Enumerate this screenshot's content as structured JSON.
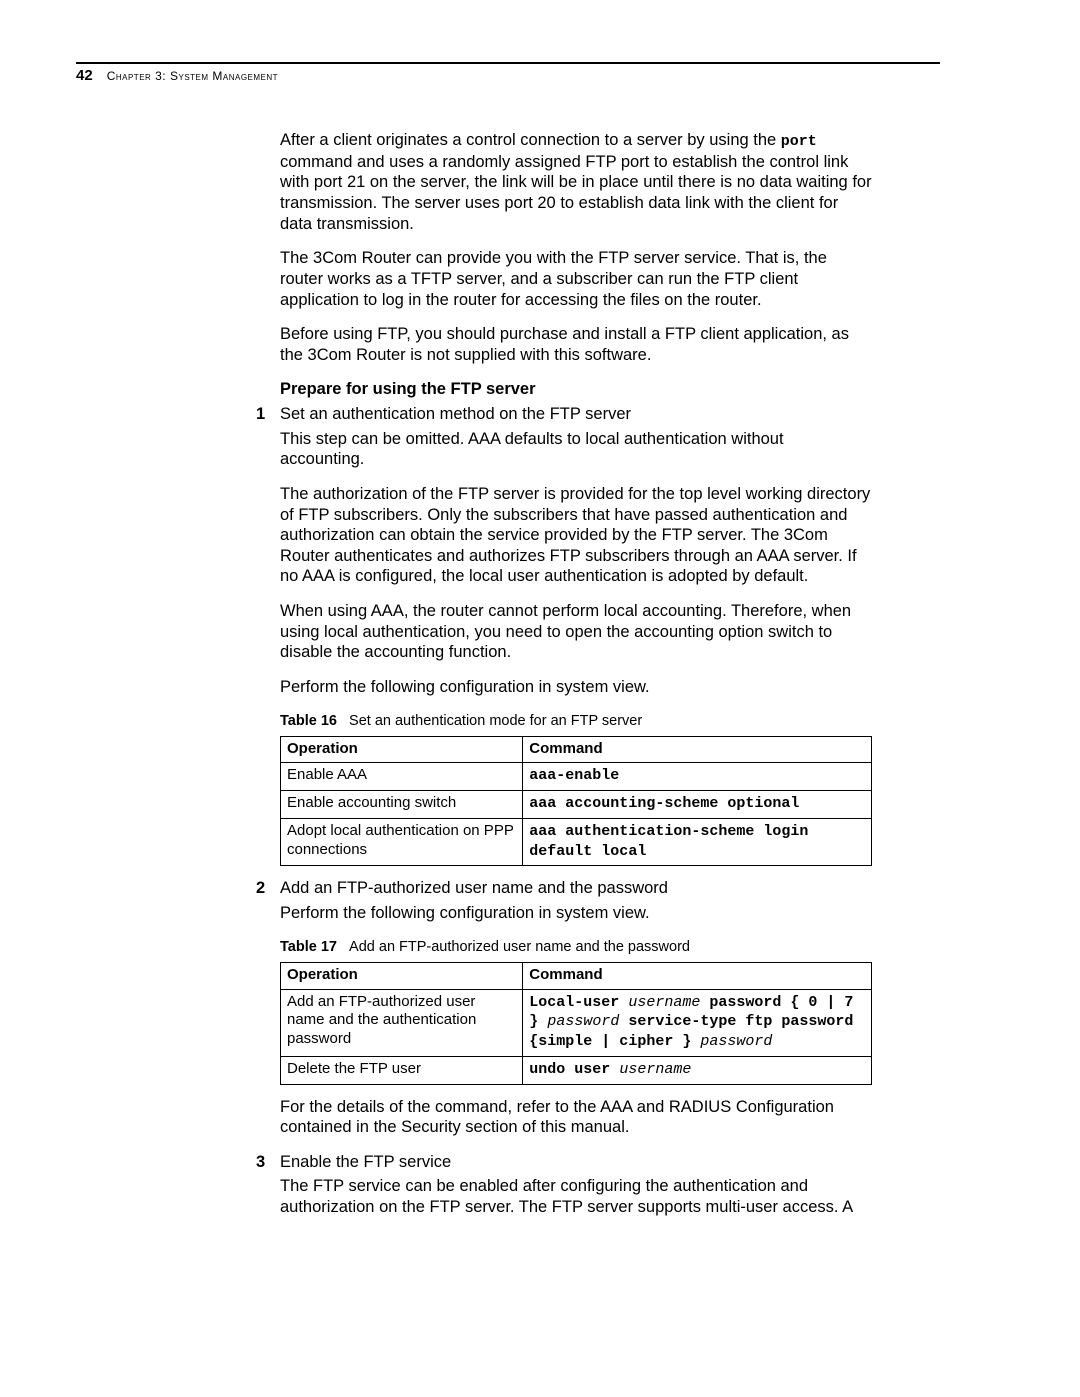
{
  "header": {
    "page_number": "42",
    "chapter_label": "Chapter 3: System Management"
  },
  "para1_a": "After a client originates a control connection to a server by using the ",
  "para1_code": "port",
  "para1_b": " command and uses a randomly assigned FTP port to establish the control link with port 21 on the server, the link will be in place until there is no data waiting for transmission. The server uses port 20 to establish data link with the client for data transmission.",
  "para2": "The 3Com Router can provide you with the FTP server service. That is, the router works as a TFTP server, and a subscriber can run the FTP client application to log in the router for accessing the files on the router.",
  "para3": "Before using FTP, you should purchase and install a FTP client application, as the 3Com Router is not supplied with this software.",
  "section_heading": "Prepare for using the FTP server",
  "step1": {
    "num": "1",
    "title": "Set an authentication method on the FTP server",
    "p1": "This step can be omitted. AAA defaults to local authentication without accounting.",
    "p2": "The authorization of the FTP server is provided for the top level working directory of FTP subscribers. Only the subscribers that have passed authentication and authorization can obtain the service provided by the FTP server. The 3Com Router authenticates and authorizes FTP subscribers through an AAA server. If no AAA is configured, the local user authentication is adopted by default.",
    "p3": "When using AAA, the router cannot perform local accounting. Therefore, when using local authentication, you need to open the accounting option switch to disable the accounting function.",
    "p4": "Perform the following configuration in system view."
  },
  "table16": {
    "caption_label": "Table 16",
    "caption_text": "Set an authentication mode for an FTP server",
    "col_op": "Operation",
    "col_cmd": "Command",
    "rows": [
      {
        "op": "Enable AAA",
        "cmd": "aaa-enable"
      },
      {
        "op": "Enable accounting switch",
        "cmd": "aaa accounting-scheme optional"
      },
      {
        "op": "Adopt local authentication on PPP connections",
        "cmd": "aaa authentication-scheme login default local"
      }
    ]
  },
  "step2": {
    "num": "2",
    "title": "Add an FTP-authorized user name and the password",
    "p1": "Perform the following configuration in system view."
  },
  "table17": {
    "caption_label": "Table 17",
    "caption_text": "Add an FTP-authorized user name and the password",
    "col_op": "Operation",
    "col_cmd": "Command",
    "row1": {
      "op": "Add an FTP-authorized user name and the authentication password",
      "cmd_seg1": "Local-user ",
      "cmd_arg1": "username",
      "cmd_seg2": " password { 0 | 7 } ",
      "cmd_arg2": "password",
      "cmd_seg3": " service-type ftp password {simple | cipher } ",
      "cmd_arg3": "password"
    },
    "row2": {
      "op": "Delete the FTP user",
      "cmd_seg1": "undo user ",
      "cmd_arg1": "username"
    }
  },
  "after_t17": "For the details of the command, refer to the AAA and RADIUS Configuration contained in the Security section of this manual.",
  "step3": {
    "num": "3",
    "title": "Enable the FTP service",
    "p1": "The FTP service can be enabled after configuring the authentication and authorization on the FTP server. The FTP server supports multi-user access. A"
  }
}
